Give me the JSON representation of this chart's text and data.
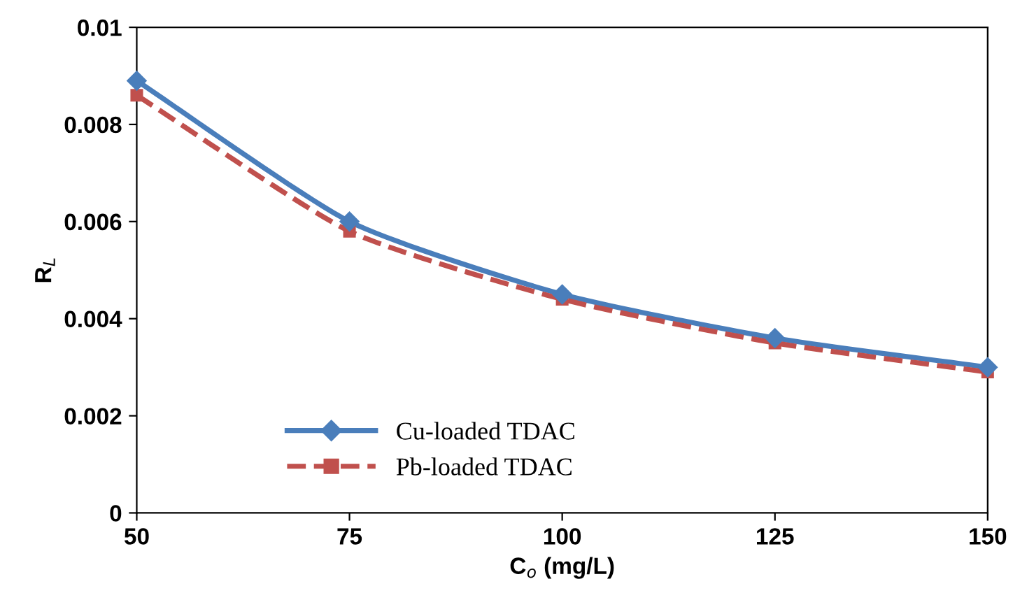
{
  "chart_data": {
    "type": "line",
    "xlabel": "C$_{o}$ (mg/L)",
    "ylabel": "R$_{L}$",
    "x": [
      50,
      75,
      100,
      125,
      150
    ],
    "series": [
      {
        "name": "Cu-loaded TDAC",
        "color": "#4a7ebb",
        "values": [
          0.0089,
          0.006,
          0.0045,
          0.0036,
          0.003
        ],
        "marker": "diamond",
        "line_style": "solid"
      },
      {
        "name": "Pb-loaded TDAC",
        "color": "#c0504d",
        "values": [
          0.0086,
          0.0058,
          0.0044,
          0.0035,
          0.0029
        ],
        "marker": "square",
        "line_style": "dashed"
      }
    ],
    "xlim": [
      50,
      150
    ],
    "xticks": [
      50,
      75,
      100,
      125,
      150
    ],
    "ylim": [
      0,
      0.01
    ],
    "yticks": [
      0,
      0.002,
      0.004,
      0.006,
      0.008,
      {
        "value": 0.01,
        "label": "0.01"
      }
    ],
    "grid": false,
    "legend": "bottom left"
  }
}
